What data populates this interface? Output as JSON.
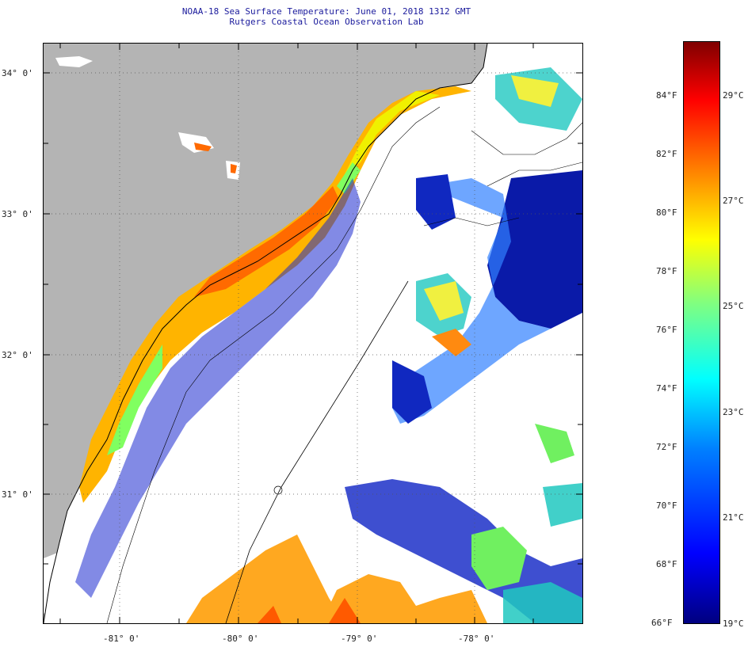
{
  "header": {
    "title": "NOAA-18 Sea Surface Temperature:  June 01, 2018 1312 GMT",
    "subtitle": "Rutgers Coastal Ocean Observation Lab"
  },
  "axes": {
    "lat_labels": [
      "34° 0'",
      "33° 0'",
      "32° 0'",
      "31° 0'"
    ],
    "lon_labels": [
      "-81° 0'",
      "-80° 0'",
      "-79° 0'",
      "-78° 0'"
    ]
  },
  "colorbar": {
    "fahrenheit": [
      "84°F",
      "82°F",
      "80°F",
      "78°F",
      "76°F",
      "74°F",
      "72°F",
      "70°F",
      "68°F",
      "66°F"
    ],
    "celsius": [
      "29°C",
      "27°C",
      "25°C",
      "23°C",
      "21°C",
      "19°C"
    ],
    "colors": [
      "#000080",
      "#0000ff",
      "#0080ff",
      "#00ffff",
      "#80ff80",
      "#ffff00",
      "#ff8000",
      "#ff0000",
      "#800000"
    ]
  },
  "colors": {
    "land": "#b4b4b4",
    "no_data": "#ffffff",
    "coastline": "#000000"
  }
}
